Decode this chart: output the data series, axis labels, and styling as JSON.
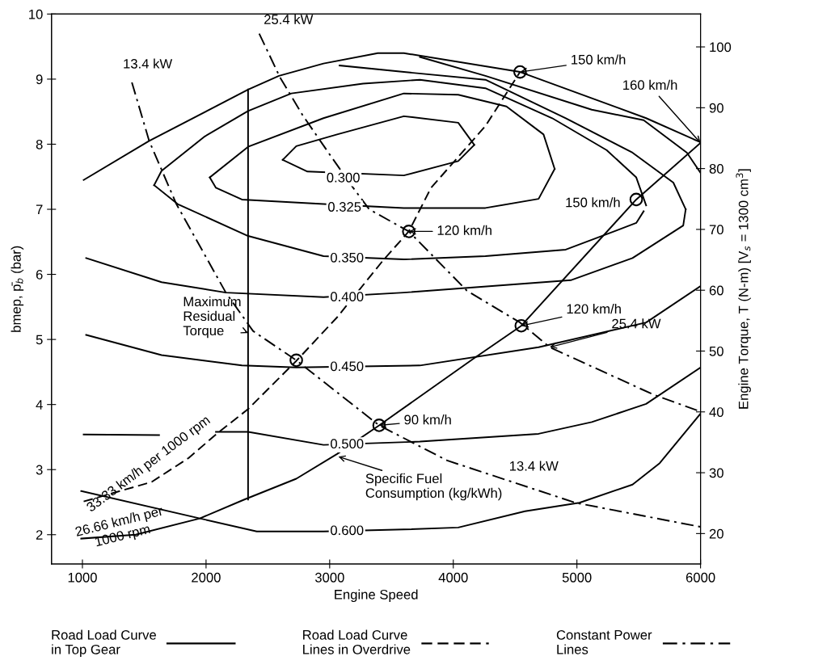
{
  "chart_data": {
    "type": "line",
    "xlabel": "Engine Speed",
    "ylabel": "bmep, p̄$_{b}$ (bar)",
    "y2label": "Engine Torque, T (N-m) [V$_{s}$ = 1300 cm$^{3}$]",
    "xlim": [
      750,
      6000
    ],
    "xticks": [
      1000,
      2000,
      3000,
      4000,
      5000,
      6000
    ],
    "ylim": [
      1.55,
      10
    ],
    "yticks": [
      2,
      3,
      4,
      5,
      6,
      7,
      8,
      9,
      10
    ],
    "y2lim": [
      15,
      105.4
    ],
    "y2ticks": [
      20,
      30,
      40,
      50,
      60,
      70,
      80,
      90,
      100
    ],
    "grid": false,
    "legend": "bottom",
    "line_style": "solid",
    "series": [
      {
        "color": "#000000",
        "x": [
          1010,
          1540,
          2340,
          2590,
          2950,
          3390,
          3600,
          4540,
          5560,
          6000
        ],
        "values": [
          7.45,
          8.05,
          8.84,
          9.05,
          9.24,
          9.4,
          9.4,
          9.11,
          8.4,
          8.03
        ]
      },
      {
        "name": "Road Load Curve\nin Top Gear",
        "color": "#000000",
        "x": [
          990,
          1430,
          1950,
          2310,
          2730,
          3060,
          3400,
          4160,
          4550,
          5480,
          6000
        ],
        "values": [
          1.94,
          2.0,
          2.25,
          2.54,
          2.86,
          3.24,
          3.68,
          4.7,
          5.21,
          7.15,
          8.02
        ]
      },
      {
        "name": "Road Load Curve\nLines in Overdrive",
        "color": "#000000",
        "line_style": "dashed",
        "x": [
          1010,
          1560,
          1860,
          2080,
          2340,
          2730,
          3060,
          3430,
          3640,
          3820,
          4260,
          4540
        ],
        "values": [
          2.51,
          2.81,
          3.18,
          3.54,
          3.93,
          4.67,
          5.34,
          6.21,
          6.66,
          7.33,
          8.28,
          9.11
        ]
      },
      {
        "name": "Constant Power\nLines",
        "color": "#000000",
        "line_style": "dashdot",
        "x": [
          1400,
          1540,
          1760,
          2160,
          2380,
          2730,
          3400,
          3950,
          4990,
          6000
        ],
        "values": [
          8.95,
          8.05,
          7.08,
          5.72,
          5.13,
          4.68,
          3.68,
          3.14,
          2.49,
          2.12
        ]
      },
      {
        "color": "#000000",
        "line_style": "dashdot",
        "x": [
          2430,
          2600,
          2780,
          2990,
          3190,
          3320,
          3640,
          4110,
          4540,
          4780,
          5610,
          6000
        ],
        "values": [
          9.7,
          9.02,
          8.45,
          7.87,
          7.33,
          7.0,
          6.66,
          5.75,
          5.26,
          4.88,
          4.16,
          3.89
        ]
      },
      {
        "color": "#000000",
        "x": [
          2620,
          2820,
          3600,
          4040,
          4170
        ],
        "values": [
          7.76,
          7.58,
          7.52,
          7.74,
          7.99
        ]
      },
      {
        "color": "#000000",
        "x": [
          2620,
          2730,
          3060,
          3600,
          4040,
          4170
        ],
        "values": [
          7.76,
          7.97,
          8.15,
          8.43,
          8.33,
          7.99
        ]
      },
      {
        "color": "#000000",
        "x": [
          2030,
          2080,
          2290,
          2950,
          3600,
          4260,
          4690,
          4820
        ],
        "values": [
          7.49,
          7.33,
          7.15,
          7.08,
          7.02,
          7.02,
          7.16,
          7.62
        ]
      },
      {
        "color": "#000000",
        "x": [
          2030,
          2340,
          2950,
          3600,
          4040,
          4430,
          4730,
          4820
        ],
        "values": [
          7.49,
          7.96,
          8.4,
          8.78,
          8.76,
          8.58,
          8.15,
          7.62
        ]
      },
      {
        "color": "#000000",
        "x": [
          1580,
          1770,
          2340,
          2950,
          3600,
          4260,
          4910,
          5480,
          5540
        ],
        "values": [
          7.37,
          7.08,
          6.59,
          6.28,
          6.23,
          6.28,
          6.38,
          6.79,
          6.97
        ]
      },
      {
        "color": "#000000",
        "x": [
          1580,
          1640,
          1990,
          2340,
          2690,
          3270,
          3730,
          4260,
          4800,
          5240,
          5480,
          5560
        ],
        "values": [
          7.37,
          7.59,
          8.12,
          8.51,
          8.78,
          8.93,
          8.99,
          8.86,
          8.4,
          7.91,
          7.49,
          7.06
        ]
      },
      {
        "color": "#000000",
        "x": [
          1030,
          1640,
          2160,
          2950,
          3600,
          4950,
          5450,
          5860,
          5880
        ],
        "values": [
          6.25,
          5.88,
          5.72,
          5.65,
          5.72,
          5.91,
          6.25,
          6.75,
          7.0
        ]
      },
      {
        "color": "#000000",
        "x": [
          3080,
          3600,
          4260,
          4910,
          5450,
          5780,
          5880
        ],
        "values": [
          9.21,
          9.11,
          8.99,
          8.4,
          7.87,
          7.41,
          7.0
        ]
      },
      {
        "color": "#000000",
        "x": [
          3730,
          4260,
          5120,
          5540,
          5890,
          6000
        ],
        "values": [
          9.34,
          9.05,
          8.53,
          8.37,
          7.87,
          7.56
        ]
      },
      {
        "color": "#000000",
        "x": [
          1030,
          1640,
          2290,
          2730,
          3730,
          4690,
          5560,
          6000
        ],
        "values": [
          5.07,
          4.76,
          4.6,
          4.57,
          4.6,
          4.88,
          5.26,
          5.82
        ]
      },
      {
        "color": "#000000",
        "x": [
          1010,
          1620,
          1850,
          2080,
          2340,
          2950,
          3730,
          4690,
          5120,
          5560,
          6000
        ],
        "values": [
          3.54,
          3.53,
          null,
          3.58,
          3.58,
          3.38,
          3.43,
          3.55,
          3.73,
          4.01,
          4.57
        ]
      },
      {
        "color": "#000000",
        "x": [
          990,
          1950,
          2410,
          2950,
          3600,
          4040,
          4580,
          5020,
          5450,
          5670,
          6000
        ],
        "values": [
          2.67,
          2.25,
          2.05,
          2.05,
          2.08,
          2.11,
          2.36,
          2.49,
          2.77,
          3.1,
          3.86
        ]
      },
      {
        "color": "#000000",
        "x": [
          2340,
          2340
        ],
        "values": [
          2.54,
          8.84
        ]
      },
      {
        "type": "scatter",
        "marker": "circle",
        "color": "#000000",
        "x": [
          2730,
          3640,
          4540,
          3400,
          4550,
          5480
        ],
        "values": [
          4.68,
          6.66,
          9.11,
          3.68,
          5.21,
          7.15
        ]
      }
    ],
    "annotations": [
      {
        "text": "25.4 kW",
        "x": 2430,
        "y": 9.7
      },
      {
        "text": "13.4 kW",
        "x": 1400,
        "y": 8.95
      },
      {
        "text": "150 km/h",
        "x": 4540,
        "y": 9.11
      },
      {
        "text": "160 km/h",
        "x": 6000,
        "y": 8.02
      },
      {
        "text": "120 km/h",
        "x": 3640,
        "y": 6.66
      },
      {
        "text": "150 km/h",
        "x": 5480,
        "y": 7.15
      },
      {
        "text": "120 km/h",
        "x": 4550,
        "y": 5.21
      },
      {
        "text": "90 km/h",
        "x": 3400,
        "y": 3.68
      },
      {
        "text": "25.4 kW",
        "x": 4780,
        "y": 4.88
      },
      "13.4 kW",
      {
        "text": "Maximum\nResidual\nTorque",
        "x": 2340,
        "y": 5.1
      },
      "33.33 km/h per 1000 rpm",
      "26.66 km/h per\n1000 rpm",
      {
        "text": "Specific Fuel\nConsumption (kg/kWh)",
        "x": 3070,
        "y": 3.2
      },
      {
        "text": "0.300",
        "x": 3110,
        "y": 7.47
      },
      {
        "text": "0.325",
        "x": 3120,
        "y": 7.02
      },
      {
        "text": "0.350",
        "x": 3140,
        "y": 6.24
      },
      {
        "text": "0.400",
        "x": 3140,
        "y": 5.64
      },
      {
        "text": "0.450",
        "x": 3140,
        "y": 4.57
      },
      {
        "text": "0.500",
        "x": 3140,
        "y": 3.38
      },
      {
        "text": "0.600",
        "x": 3140,
        "y": 2.05
      }
    ]
  }
}
